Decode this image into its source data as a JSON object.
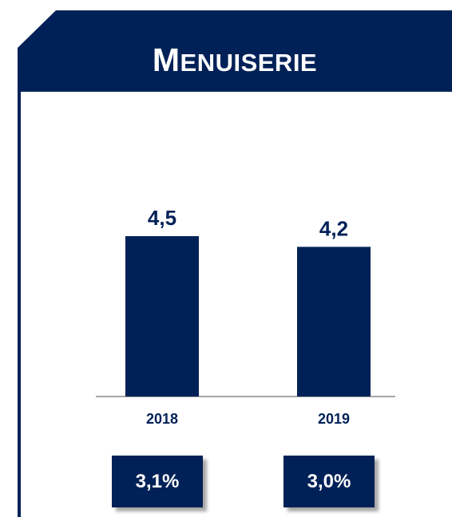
{
  "chart_data": {
    "type": "bar",
    "title": "MENUISERIE",
    "categories": [
      "2018",
      "2019"
    ],
    "values": [
      4.5,
      4.2
    ],
    "value_labels": [
      "4,5",
      "4,2"
    ],
    "color": "#002157",
    "annotations": [
      "3,1%",
      "3,0%"
    ]
  }
}
